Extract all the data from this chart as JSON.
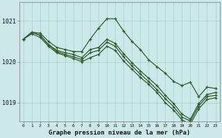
{
  "title": "Graphe pression niveau de la mer (hPa)",
  "background_color": "#cce8e8",
  "grid_color": "#b0d0d0",
  "line_color": "#2d5a2d",
  "x_ticks": [
    0,
    1,
    2,
    3,
    4,
    5,
    6,
    7,
    8,
    9,
    10,
    11,
    12,
    13,
    14,
    15,
    16,
    17,
    18,
    19,
    20,
    21,
    22,
    23
  ],
  "ylim": [
    1018.55,
    1021.45
  ],
  "yticks": [
    1019,
    1020,
    1021
  ],
  "lines": [
    [
      1020.55,
      1020.72,
      1020.7,
      1020.5,
      1020.35,
      1020.3,
      1020.25,
      1020.25,
      1020.55,
      1020.82,
      1021.05,
      1021.05,
      1020.75,
      1020.5,
      1020.3,
      1020.05,
      1019.88,
      1019.72,
      1019.52,
      1019.42,
      1019.5,
      1019.15,
      1019.38,
      1019.35
    ],
    [
      1020.55,
      1020.72,
      1020.65,
      1020.42,
      1020.28,
      1020.22,
      1020.18,
      1020.1,
      1020.3,
      1020.35,
      1020.55,
      1020.45,
      1020.2,
      1019.98,
      1019.78,
      1019.6,
      1019.42,
      1019.18,
      1018.98,
      1018.72,
      1018.6,
      1018.98,
      1019.2,
      1019.25
    ],
    [
      1020.55,
      1020.72,
      1020.65,
      1020.42,
      1020.25,
      1020.18,
      1020.12,
      1020.05,
      1020.22,
      1020.28,
      1020.48,
      1020.38,
      1020.12,
      1019.9,
      1019.7,
      1019.52,
      1019.32,
      1019.1,
      1018.9,
      1018.65,
      1018.55,
      1018.92,
      1019.15,
      1019.18
    ],
    [
      1020.55,
      1020.68,
      1020.6,
      1020.38,
      1020.22,
      1020.15,
      1020.08,
      1020.0,
      1020.1,
      1020.18,
      1020.38,
      1020.28,
      1020.02,
      1019.82,
      1019.62,
      1019.45,
      1019.25,
      1019.0,
      1018.82,
      1018.58,
      1018.48,
      1018.85,
      1019.08,
      1019.12
    ]
  ]
}
